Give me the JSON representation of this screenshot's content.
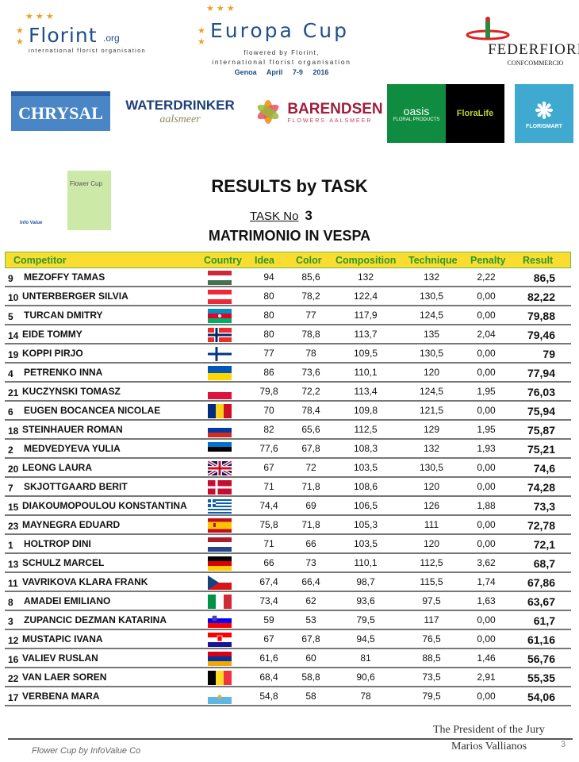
{
  "logos": {
    "florint": {
      "name": "Florint",
      "suffix": ".org",
      "sub": "international florist organisation"
    },
    "europa_cup": {
      "name": "Europa Cup",
      "line1": "flowered by Florint,",
      "line2": "international florist organisation",
      "line3": "Genoa   April 7-9   2016"
    },
    "federfiori": {
      "name": "FEDERFIORI",
      "sub": "CONFCOMMERCIO"
    },
    "chrysal": "CHRYSAL",
    "waterdrinker": {
      "name": "WATERDRINKER",
      "sub": "aalsmeer"
    },
    "barendsen": {
      "name": "BARENDSEN",
      "sub": "FLOWERS·AALSMEER"
    },
    "oasis": {
      "name": "oasis",
      "sub": "FLORAL PRODUCTS"
    },
    "floralife": "FloraLife",
    "florismart": "FLORISMART",
    "flower_cup": {
      "name": "Flower Cup",
      "sub": "Info Value"
    }
  },
  "title": "RESULTS by TASK",
  "task": {
    "label": "TASK No",
    "number": "3",
    "name": "MATRIMONIO IN VESPA"
  },
  "table": {
    "headers": {
      "competitor": "Competitor",
      "country": "Country",
      "idea": "Idea",
      "color": "Color",
      "composition": "Composition",
      "technique": "Technique",
      "penalty": "Penalty",
      "result": "Result"
    },
    "rows": [
      {
        "no": "9",
        "name": "MEZOFFY  TAMAS",
        "country": "HU",
        "idea": "94",
        "color": "85,6",
        "composition": "132",
        "technique": "132",
        "penalty": "2,22",
        "result": "86,5"
      },
      {
        "no": "10",
        "name": "UNTERBERGER  SILVIA",
        "country": "AT",
        "idea": "80",
        "color": "78,2",
        "composition": "122,4",
        "technique": "130,5",
        "penalty": "0,00",
        "result": "82,22"
      },
      {
        "no": "5",
        "name": "TURCAN  DMITRY",
        "country": "AZ",
        "idea": "80",
        "color": "77",
        "composition": "117,9",
        "technique": "124,5",
        "penalty": "0,00",
        "result": "79,88"
      },
      {
        "no": "14",
        "name": "EIDE  TOMMY",
        "country": "NO",
        "idea": "80",
        "color": "78,8",
        "composition": "113,7",
        "technique": "135",
        "penalty": "2,04",
        "result": "79,46"
      },
      {
        "no": "19",
        "name": "KOPPI  PIRJO",
        "country": "FI",
        "idea": "77",
        "color": "78",
        "composition": "109,5",
        "technique": "130,5",
        "penalty": "0,00",
        "result": "79"
      },
      {
        "no": "4",
        "name": "PETRENKO  INNA",
        "country": "UA",
        "idea": "86",
        "color": "73,6",
        "composition": "110,1",
        "technique": "120",
        "penalty": "0,00",
        "result": "77,94"
      },
      {
        "no": "21",
        "name": "KUCZYNSKI  TOMASZ",
        "country": "PL",
        "idea": "79,8",
        "color": "72,2",
        "composition": "113,4",
        "technique": "124,5",
        "penalty": "1,95",
        "result": "76,03"
      },
      {
        "no": "6",
        "name": "EUGEN BOCANCEA  NICOLAE",
        "country": "RO",
        "idea": "70",
        "color": "78,4",
        "composition": "109,8",
        "technique": "121,5",
        "penalty": "0,00",
        "result": "75,94"
      },
      {
        "no": "18",
        "name": "STEINHAUER  ROMAN",
        "country": "RU",
        "idea": "82",
        "color": "65,6",
        "composition": "112,5",
        "technique": "129",
        "penalty": "1,95",
        "result": "75,87"
      },
      {
        "no": "2",
        "name": "MEDVEDYEVA  YULIA",
        "country": "EE",
        "idea": "77,6",
        "color": "67,8",
        "composition": "108,3",
        "technique": "132",
        "penalty": "1,93",
        "result": "75,21"
      },
      {
        "no": "20",
        "name": "LEONG  LAURA",
        "country": "GB",
        "idea": "67",
        "color": "72",
        "composition": "103,5",
        "technique": "130,5",
        "penalty": "0,00",
        "result": "74,6"
      },
      {
        "no": "7",
        "name": "SKJOTTGAARD  BERIT",
        "country": "DK",
        "idea": "71",
        "color": "71,8",
        "composition": "108,6",
        "technique": "120",
        "penalty": "0,00",
        "result": "74,28"
      },
      {
        "no": "15",
        "name": "DIAKOUMOPOULOU  KONSTANTINA",
        "country": "GR",
        "idea": "74,4",
        "color": "69",
        "composition": "106,5",
        "technique": "126",
        "penalty": "1,88",
        "result": "73,3"
      },
      {
        "no": "23",
        "name": "MAYNEGRA  EDUARD",
        "country": "ES",
        "idea": "75,8",
        "color": "71,8",
        "composition": "105,3",
        "technique": "111",
        "penalty": "0,00",
        "result": "72,78"
      },
      {
        "no": "1",
        "name": "HOLTROP  DINI",
        "country": "NL",
        "idea": "71",
        "color": "66",
        "composition": "103,5",
        "technique": "120",
        "penalty": "0,00",
        "result": "72,1"
      },
      {
        "no": "13",
        "name": "SCHULZ  MARCEL",
        "country": "DE",
        "idea": "66",
        "color": "73",
        "composition": "110,1",
        "technique": "112,5",
        "penalty": "3,62",
        "result": "68,7"
      },
      {
        "no": "11",
        "name": "VAVRIKOVA  KLARA FRANK",
        "country": "CZ",
        "idea": "67,4",
        "color": "66,4",
        "composition": "98,7",
        "technique": "115,5",
        "penalty": "1,74",
        "result": "67,86"
      },
      {
        "no": "8",
        "name": "AMADEI  EMILIANO",
        "country": "IT",
        "idea": "73,4",
        "color": "62",
        "composition": "93,6",
        "technique": "97,5",
        "penalty": "1,63",
        "result": "63,67"
      },
      {
        "no": "3",
        "name": "ZUPANCIC DEZMAN  KATARINA",
        "country": "SI",
        "idea": "59",
        "color": "53",
        "composition": "79,5",
        "technique": "117",
        "penalty": "0,00",
        "result": "61,7"
      },
      {
        "no": "12",
        "name": "MUSTAPIC  IVANA",
        "country": "HR",
        "idea": "67",
        "color": "67,8",
        "composition": "94,5",
        "technique": "76,5",
        "penalty": "0,00",
        "result": "61,16"
      },
      {
        "no": "16",
        "name": "VALIEV  RUSLAN",
        "country": "AM",
        "idea": "61,6",
        "color": "60",
        "composition": "81",
        "technique": "88,5",
        "penalty": "1,46",
        "result": "56,76"
      },
      {
        "no": "22",
        "name": "VAN LAER  SOREN",
        "country": "BE",
        "idea": "68,4",
        "color": "58,8",
        "composition": "90,6",
        "technique": "73,5",
        "penalty": "2,91",
        "result": "55,35"
      },
      {
        "no": "17",
        "name": "VERBENA  MARA",
        "country": "SM",
        "idea": "54,8",
        "color": "58",
        "composition": "78",
        "technique": "79,5",
        "penalty": "0,00",
        "result": "54,06"
      }
    ]
  },
  "signature": {
    "line1": "The President of the Jury",
    "line2": "Marios Vallianos"
  },
  "footer": "Flower Cup by InfoValue Co",
  "page_number": "3",
  "colors": {
    "header_bg": "#fbdc30",
    "header_text": "#2a9a2a",
    "header_border": "#6cbf3b"
  }
}
